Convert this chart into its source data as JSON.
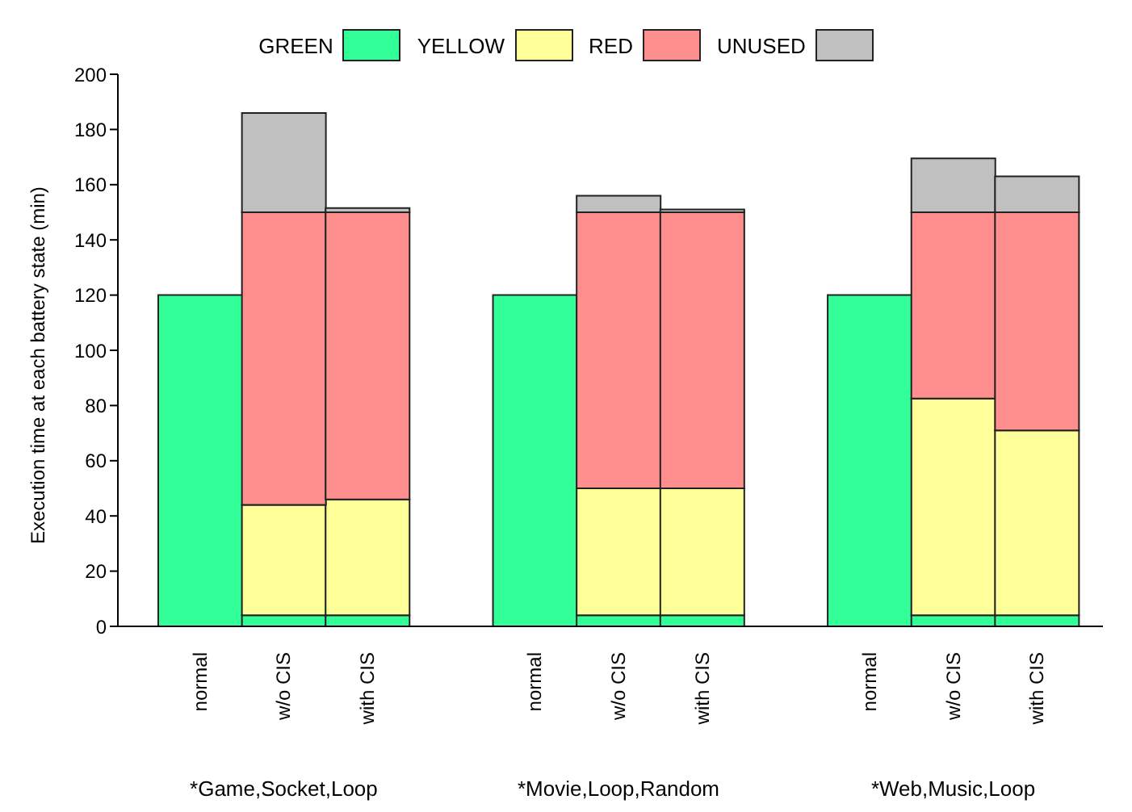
{
  "chart_data": {
    "type": "bar",
    "stacked": true,
    "ylabel": "Execution time at each battery state (min)",
    "categories": [
      "normal",
      "w/o CIS",
      "with CIS",
      null,
      "normal",
      "w/o CIS",
      "with CIS",
      null,
      "normal",
      "w/o CIS",
      "with CIS"
    ],
    "series": [
      {
        "name": "GREEN",
        "color": "#33ff99",
        "values": [
          120,
          4,
          4,
          null,
          120,
          4,
          4,
          null,
          120,
          4,
          4
        ]
      },
      {
        "name": "YELLOW",
        "color": "#ffff99",
        "values": [
          null,
          40,
          42,
          null,
          null,
          46,
          46,
          null,
          null,
          78.5,
          67
        ]
      },
      {
        "name": "RED",
        "color": "#ff8f8f",
        "values": [
          null,
          106,
          104,
          null,
          null,
          100,
          100,
          null,
          null,
          67.5,
          79
        ]
      },
      {
        "name": "UNUSED",
        "color": "#c0c0c0",
        "values": [
          null,
          36,
          1.5,
          null,
          null,
          6,
          1,
          null,
          null,
          19.5,
          13
        ]
      }
    ],
    "ylim": [
      0,
      200
    ],
    "yticks": [
      0,
      20,
      40,
      60,
      80,
      100,
      120,
      140,
      160,
      180,
      200
    ],
    "grid": false,
    "legend": "top",
    "annotations": [
      "*Game,Socket,Loop",
      "*Movie,Loop,Random",
      "*Web,Music,Loop"
    ]
  }
}
